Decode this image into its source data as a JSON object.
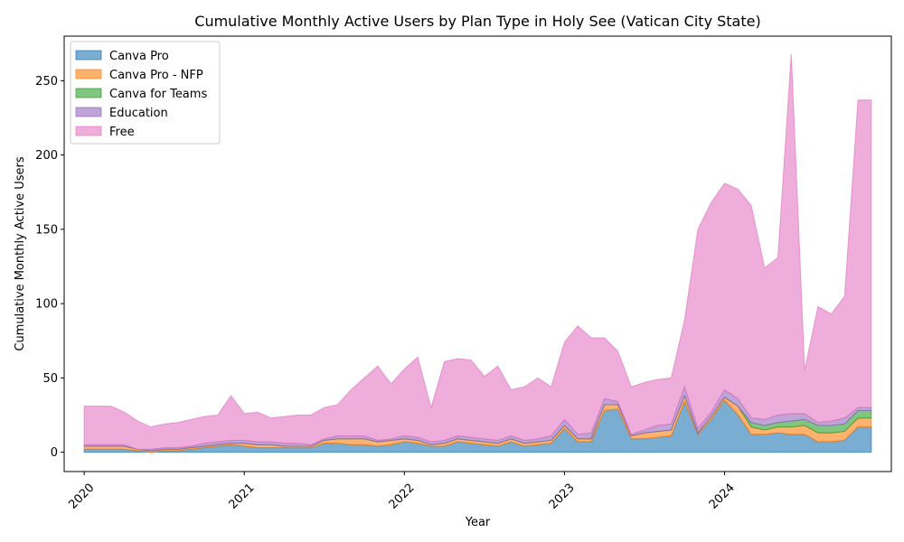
{
  "chart_data": {
    "type": "area",
    "stacked": true,
    "title": "Cumulative Monthly Active Users by Plan Type in Holy See (Vatican City State)",
    "xlabel": "Year",
    "ylabel": "Cumulative Monthly Active Users",
    "x_start": "2020-01",
    "x_tick_labels": [
      "2020",
      "2021",
      "2022",
      "2023",
      "2024"
    ],
    "x_tick_rotation_deg": 45,
    "xlim_months": [
      -1.5,
      60.5
    ],
    "ylim": [
      -13,
      280
    ],
    "y_ticks": [
      0,
      50,
      100,
      150,
      200,
      250
    ],
    "grid": false,
    "legend_position": "upper-left",
    "x": [
      "2020-01",
      "2020-02",
      "2020-03",
      "2020-04",
      "2020-05",
      "2020-06",
      "2020-07",
      "2020-08",
      "2020-09",
      "2020-10",
      "2020-11",
      "2020-12",
      "2021-01",
      "2021-02",
      "2021-03",
      "2021-04",
      "2021-05",
      "2021-06",
      "2021-07",
      "2021-08",
      "2021-09",
      "2021-10",
      "2021-11",
      "2021-12",
      "2022-01",
      "2022-02",
      "2022-03",
      "2022-04",
      "2022-05",
      "2022-06",
      "2022-07",
      "2022-08",
      "2022-09",
      "2022-10",
      "2022-11",
      "2022-12",
      "2023-01",
      "2023-02",
      "2023-03",
      "2023-04",
      "2023-05",
      "2023-06",
      "2023-07",
      "2023-08",
      "2023-09",
      "2023-10",
      "2023-11",
      "2023-12",
      "2024-01",
      "2024-02",
      "2024-03",
      "2024-04",
      "2024-05",
      "2024-06",
      "2024-07",
      "2024-08",
      "2024-09",
      "2024-10",
      "2024-11",
      "2024-12"
    ],
    "series": [
      {
        "name": "Canva Pro",
        "color": "#1f77b4",
        "values": [
          2,
          2,
          2,
          2,
          1,
          0,
          1,
          1,
          2,
          3,
          4,
          5,
          4,
          3,
          3,
          3,
          3,
          3,
          6,
          6,
          5,
          5,
          4,
          5,
          7,
          6,
          4,
          4,
          7,
          6,
          5,
          4,
          7,
          4,
          5,
          6,
          16,
          7,
          7,
          28,
          29,
          9,
          9,
          10,
          11,
          34,
          12,
          22,
          35,
          25,
          12,
          12,
          13,
          12,
          12,
          7,
          7,
          8,
          17,
          17
        ]
      },
      {
        "name": "Canva Pro - NFP",
        "color": "#ff7f0e",
        "values": [
          2,
          2,
          2,
          2,
          1,
          1,
          1,
          1,
          1,
          1,
          1,
          1,
          2,
          2,
          2,
          1,
          1,
          1,
          2,
          3,
          4,
          4,
          3,
          3,
          2,
          2,
          1,
          2,
          2,
          2,
          2,
          2,
          2,
          2,
          2,
          2,
          2,
          2,
          2,
          4,
          3,
          2,
          4,
          4,
          4,
          4,
          1,
          2,
          2,
          6,
          5,
          3,
          4,
          5,
          6,
          6,
          6,
          6,
          6,
          6
        ]
      },
      {
        "name": "Canva for Teams",
        "color": "#2ca02c",
        "values": [
          0,
          0,
          0,
          0,
          0,
          0,
          0,
          0,
          0,
          0,
          0,
          0,
          0,
          0,
          0,
          0,
          0,
          0,
          0,
          0,
          0,
          0,
          0,
          0,
          0,
          0,
          0,
          0,
          0,
          0,
          0,
          0,
          0,
          0,
          0,
          0,
          0,
          0,
          0,
          0,
          0,
          0,
          0,
          0,
          0,
          0,
          0,
          0,
          0,
          0,
          3,
          3,
          3,
          4,
          4,
          5,
          5,
          5,
          5,
          5
        ]
      },
      {
        "name": "Education",
        "color": "#9467bd",
        "values": [
          1,
          1,
          1,
          1,
          0,
          1,
          1,
          1,
          1,
          2,
          2,
          2,
          2,
          2,
          2,
          2,
          2,
          1,
          1,
          2,
          2,
          2,
          1,
          1,
          2,
          2,
          2,
          2,
          2,
          2,
          2,
          2,
          2,
          2,
          2,
          3,
          4,
          3,
          4,
          4,
          2,
          1,
          2,
          4,
          4,
          6,
          3,
          3,
          5,
          5,
          3,
          4,
          5,
          5,
          4,
          2,
          3,
          4,
          2,
          2
        ]
      },
      {
        "name": "Free",
        "color": "#e377c2",
        "values": [
          26,
          26,
          26,
          22,
          19,
          15,
          16,
          17,
          18,
          18,
          18,
          30,
          18,
          20,
          16,
          18,
          19,
          20,
          21,
          21,
          31,
          39,
          50,
          37,
          45,
          54,
          23,
          53,
          52,
          52,
          42,
          50,
          31,
          36,
          41,
          33,
          52,
          73,
          64,
          41,
          34,
          32,
          32,
          31,
          31,
          45,
          134,
          141,
          139,
          141,
          143,
          102,
          106,
          242,
          29,
          78,
          72,
          82,
          207,
          207
        ]
      }
    ]
  },
  "colors": {
    "axes": "#000000",
    "background": "#ffffff",
    "legend_border": "#cccccc"
  }
}
